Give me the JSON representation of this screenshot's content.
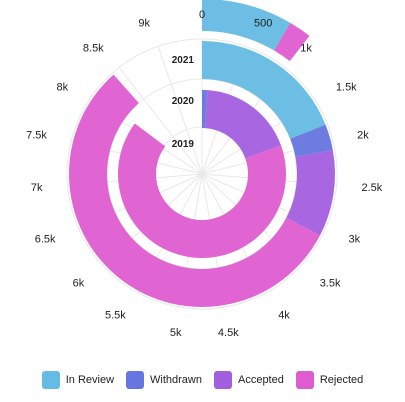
{
  "chart_data": {
    "type": "radial-stacked-bar",
    "angle_axis": {
      "min": 0,
      "max": 9500,
      "ticks": [
        0,
        500,
        1000,
        1500,
        2000,
        2500,
        3000,
        3500,
        4000,
        4500,
        5000,
        5500,
        6000,
        6500,
        7000,
        7500,
        8000,
        8500,
        9000
      ],
      "tick_labels": [
        "0",
        "500",
        "1k",
        "1.5k",
        "2k",
        "2.5k",
        "3k",
        "3.5k",
        "4k",
        "4.5k",
        "5k",
        "5.5k",
        "6k",
        "6.5k",
        "7k",
        "7.5k",
        "8k",
        "8.5k",
        "9k"
      ]
    },
    "categories": [
      "2019",
      "2020",
      "2021"
    ],
    "series": [
      {
        "name": "In Review",
        "color": "#64bbe3",
        "values": [
          0,
          1800,
          800
        ]
      },
      {
        "name": "Withdrawn",
        "color": "#6675e0",
        "values": [
          100,
          300,
          0
        ]
      },
      {
        "name": "Accepted",
        "color": "#a35fdf",
        "values": [
          1750,
          1000,
          0
        ]
      },
      {
        "name": "Rejected",
        "color": "#de5ccf",
        "values": [
          6250,
          5300,
          200
        ]
      }
    ],
    "grid": true,
    "legend_position": "bottom"
  }
}
